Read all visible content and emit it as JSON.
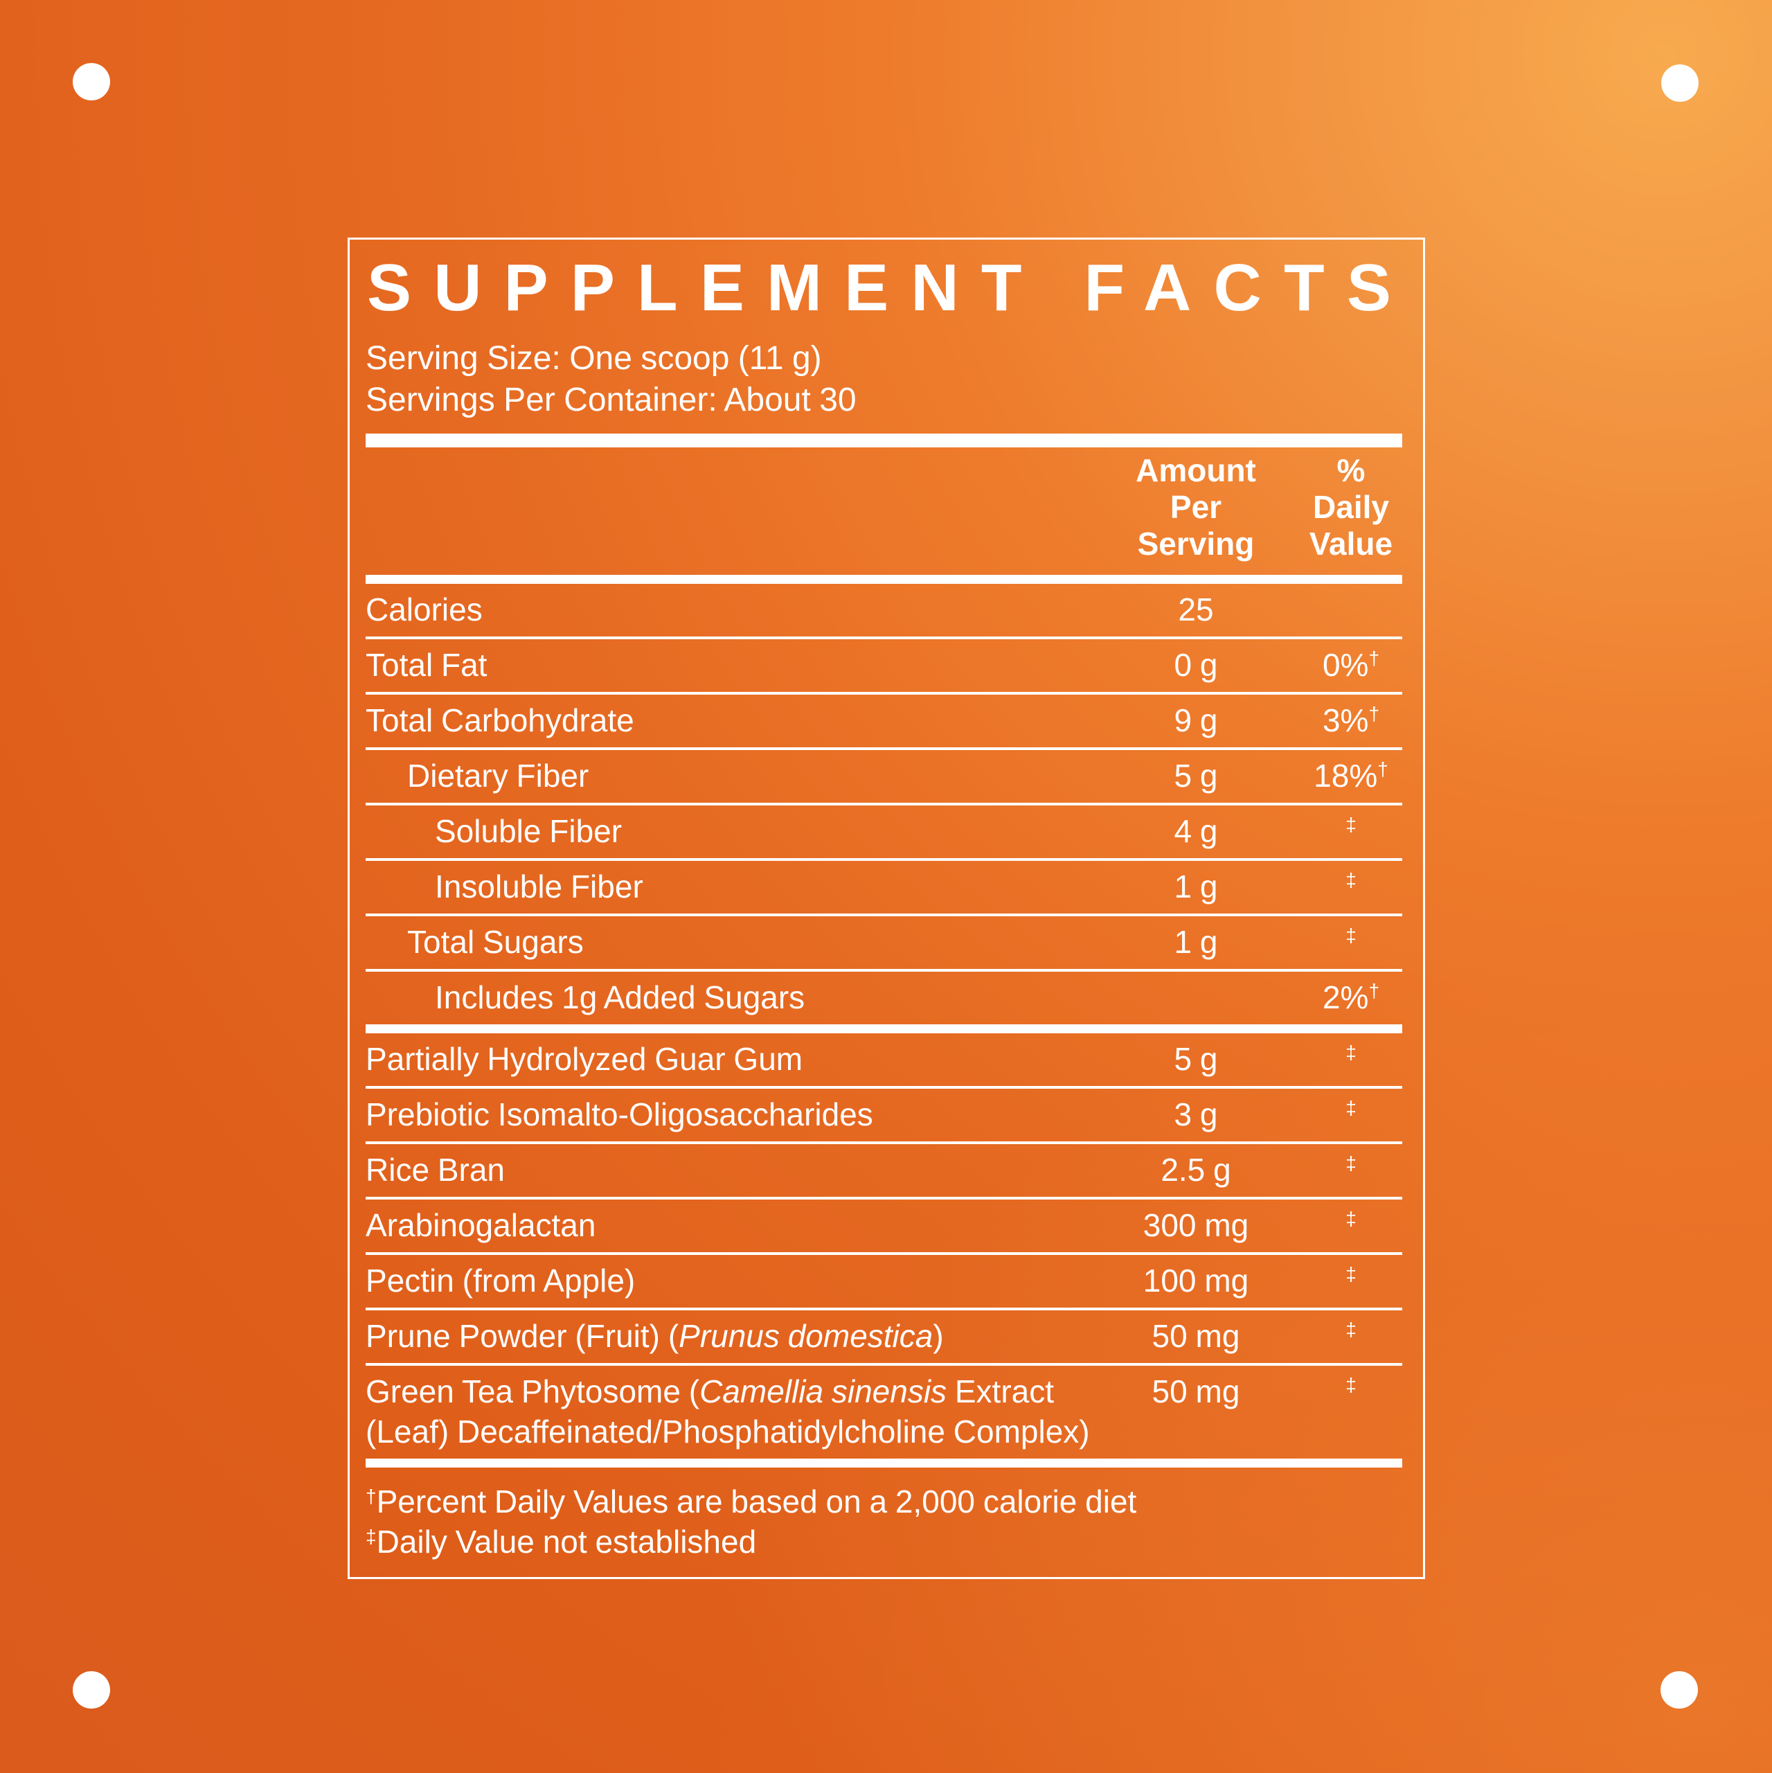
{
  "colors": {
    "background_light": "#f8aa4f",
    "background_base": "#e66a22",
    "background_dark": "#d85a1e",
    "text": "#ffffff"
  },
  "panel": {
    "title": "SUPPLEMENT FACTS",
    "serving_size": "Serving Size: One scoop (11 g)",
    "servings_per_container": "Servings Per Container: About 30",
    "header": {
      "amount": "Amount\nPer\nServing",
      "daily_value": "%\nDaily\nValue"
    },
    "rows": [
      {
        "parts": [
          {
            "t": "Calories",
            "i": false
          }
        ],
        "indent": 0,
        "amount": "25",
        "dv": "",
        "sup": "",
        "thick_top": false
      },
      {
        "parts": [
          {
            "t": "Total Fat",
            "i": false
          }
        ],
        "indent": 0,
        "amount": "0 g",
        "dv": "0%",
        "sup": "†",
        "thick_top": false
      },
      {
        "parts": [
          {
            "t": "Total Carbohydrate",
            "i": false
          }
        ],
        "indent": 0,
        "amount": "9 g",
        "dv": "3%",
        "sup": "†",
        "thick_top": false
      },
      {
        "parts": [
          {
            "t": "Dietary Fiber",
            "i": false
          }
        ],
        "indent": 1,
        "amount": "5 g",
        "dv": "18%",
        "sup": "†",
        "thick_top": false
      },
      {
        "parts": [
          {
            "t": "Soluble Fiber",
            "i": false
          }
        ],
        "indent": 2,
        "amount": "4 g",
        "dv": "",
        "sup": "‡",
        "thick_top": false
      },
      {
        "parts": [
          {
            "t": "Insoluble Fiber",
            "i": false
          }
        ],
        "indent": 2,
        "amount": "1 g",
        "dv": "",
        "sup": "‡",
        "thick_top": false
      },
      {
        "parts": [
          {
            "t": "Total Sugars",
            "i": false
          }
        ],
        "indent": 1,
        "amount": "1 g",
        "dv": "",
        "sup": "‡",
        "thick_top": false
      },
      {
        "parts": [
          {
            "t": "Includes 1g Added Sugars",
            "i": false
          }
        ],
        "indent": 2,
        "amount": "",
        "dv": "2%",
        "sup": "†",
        "thick_top": false
      },
      {
        "parts": [
          {
            "t": "Partially Hydrolyzed Guar Gum",
            "i": false
          }
        ],
        "indent": 0,
        "amount": "5 g",
        "dv": "",
        "sup": "‡",
        "thick_top": true
      },
      {
        "parts": [
          {
            "t": "Prebiotic Isomalto-Oligosaccharides",
            "i": false
          }
        ],
        "indent": 0,
        "amount": "3 g",
        "dv": "",
        "sup": "‡",
        "thick_top": false
      },
      {
        "parts": [
          {
            "t": "Rice Bran",
            "i": false
          }
        ],
        "indent": 0,
        "amount": "2.5 g",
        "dv": "",
        "sup": "‡",
        "thick_top": false
      },
      {
        "parts": [
          {
            "t": "Arabinogalactan",
            "i": false
          }
        ],
        "indent": 0,
        "amount": "300 mg",
        "dv": "",
        "sup": "‡",
        "thick_top": false
      },
      {
        "parts": [
          {
            "t": "Pectin (from Apple)",
            "i": false
          }
        ],
        "indent": 0,
        "amount": "100 mg",
        "dv": "",
        "sup": "‡",
        "thick_top": false
      },
      {
        "parts": [
          {
            "t": "Prune Powder (Fruit) (",
            "i": false
          },
          {
            "t": "Prunus domestica",
            "i": true
          },
          {
            "t": ")",
            "i": false
          }
        ],
        "indent": 0,
        "amount": "50 mg",
        "dv": "",
        "sup": "‡",
        "thick_top": false
      },
      {
        "parts": [
          {
            "t": "Green Tea Phytosome (",
            "i": false
          },
          {
            "t": "Camellia sinensis",
            "i": true
          },
          {
            "t": " Extract (Leaf) Decaffeinated/Phosphatidylcholine Complex)",
            "i": false
          }
        ],
        "indent": 0,
        "amount": "50 mg",
        "dv": "",
        "sup": "‡",
        "thick_top": false
      }
    ],
    "footnotes": [
      {
        "sup": "†",
        "text": "Percent Daily Values are based on a 2,000 calorie diet"
      },
      {
        "sup": "‡",
        "text": "Daily Value not established"
      }
    ]
  }
}
